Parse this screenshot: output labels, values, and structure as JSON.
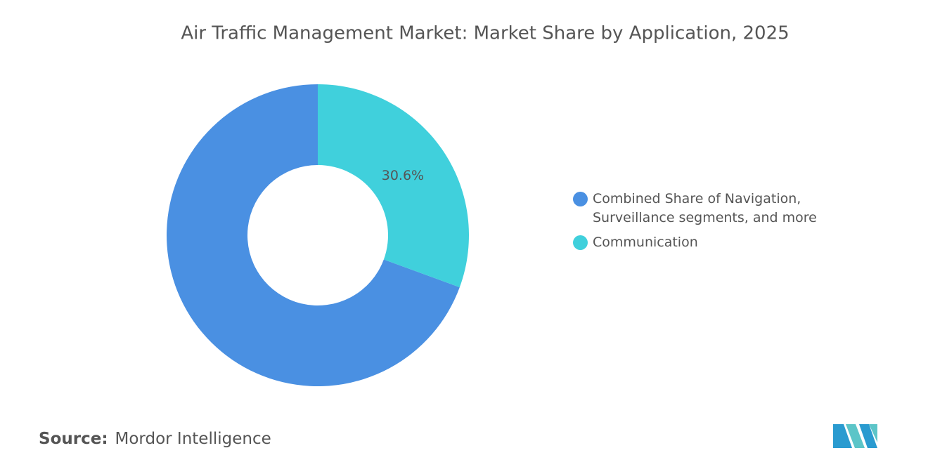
{
  "chart_data": {
    "type": "donut",
    "title": "Air Traffic Management Market: Market Share by Application, 2025",
    "categories": [
      "Combined Share of Navigation, Surveillance segments, and more",
      "Communication"
    ],
    "values": [
      69.4,
      30.6
    ],
    "value_labels": [
      null,
      "30.6%"
    ],
    "colors": [
      "#4a90e2",
      "#40d0dc"
    ],
    "legend": "right"
  },
  "footer": {
    "source_label": "Source:",
    "source": "Mordor Intelligence"
  }
}
